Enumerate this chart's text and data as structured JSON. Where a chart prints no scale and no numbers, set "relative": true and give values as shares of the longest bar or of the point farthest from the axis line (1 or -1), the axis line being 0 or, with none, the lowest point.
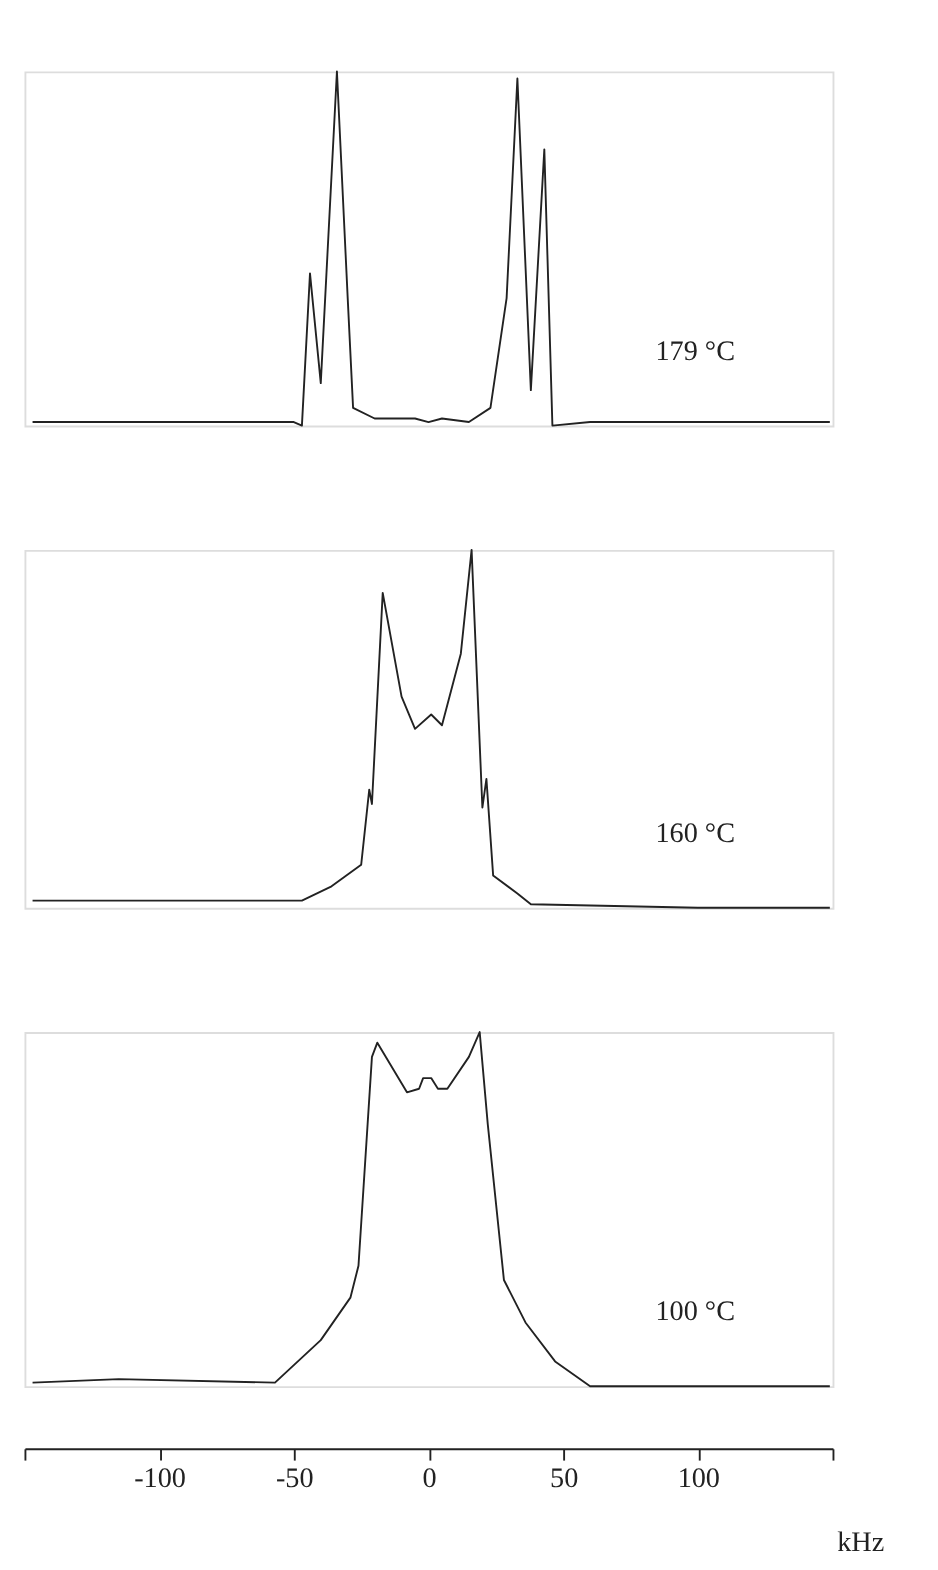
{
  "chart_data": [
    {
      "type": "line",
      "relative": true,
      "xlim": [
        -150,
        150
      ],
      "tick_labels": false,
      "grid": false,
      "legend": false,
      "series": [
        {
          "name": "179 °C",
          "color": "#222222",
          "x": [
            -147,
            -60,
            -50,
            -47,
            -44,
            -40,
            -34,
            -30,
            -28,
            -20,
            -5,
            0,
            5,
            15,
            23,
            29,
            33,
            38,
            43,
            46,
            60,
            100,
            149
          ],
          "values": [
            0.01,
            0.01,
            0.01,
            0.0,
            0.43,
            0.12,
            1.0,
            0.36,
            0.05,
            0.02,
            0.02,
            0.01,
            0.02,
            0.01,
            0.05,
            0.36,
            0.98,
            0.1,
            0.78,
            0.0,
            0.01,
            0.01,
            0.01
          ]
        }
      ]
    },
    {
      "type": "line",
      "relative": true,
      "xlim": [
        -150,
        150
      ],
      "tick_labels": false,
      "grid": false,
      "legend": false,
      "series": [
        {
          "name": "160 °C",
          "color": "#222222",
          "x": [
            -147,
            -47,
            -36,
            -25,
            -22,
            -21,
            -17,
            -10,
            -5,
            1,
            5,
            12,
            16,
            20,
            21.5,
            24,
            33,
            38,
            100,
            149
          ],
          "values": [
            0.02,
            0.02,
            0.06,
            0.12,
            0.33,
            0.29,
            0.88,
            0.59,
            0.5,
            0.54,
            0.51,
            0.71,
            1.0,
            0.28,
            0.36,
            0.09,
            0.04,
            0.01,
            0.0,
            0.0
          ]
        }
      ]
    },
    {
      "type": "line",
      "relative": true,
      "xlim": [
        -150,
        150
      ],
      "xticks": [
        {
          "value": -150,
          "label": null
        },
        -100,
        -50,
        0,
        50,
        100,
        {
          "value": 150,
          "label": null
        }
      ],
      "xlabel": "kHz",
      "grid": false,
      "legend": false,
      "series": [
        {
          "name": "100 °C",
          "color": "#222222",
          "x": [
            -147,
            -115,
            -57,
            -40,
            -29,
            -26,
            -21,
            -19,
            -8,
            -3.5,
            -2,
            1,
            3.5,
            7,
            15,
            19,
            22,
            28,
            36,
            47,
            60,
            149
          ],
          "values": [
            0.01,
            0.02,
            0.01,
            0.13,
            0.25,
            0.34,
            0.93,
            0.97,
            0.83,
            0.84,
            0.87,
            0.87,
            0.84,
            0.84,
            0.93,
            1.0,
            0.74,
            0.3,
            0.18,
            0.07,
            0.0,
            0.0
          ]
        }
      ]
    }
  ]
}
